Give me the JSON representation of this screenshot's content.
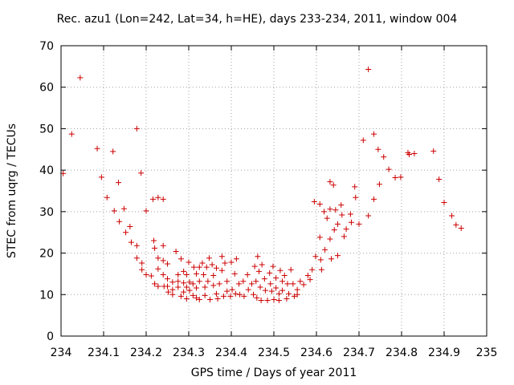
{
  "chart_data": {
    "type": "scatter",
    "title": "Rec. azu1 (Lon=242, Lat=34, h=HE), days 233-234, 2011, window 004",
    "xlabel": "GPS time / Days of year 2011",
    "ylabel": "STEC from uqrg / TECUs",
    "xlim": [
      234,
      235
    ],
    "ylim": [
      0,
      70
    ],
    "xticks": [
      "234",
      "234.1",
      "234.2",
      "234.3",
      "234.4",
      "234.5",
      "234.6",
      "234.7",
      "234.8",
      "234.9",
      "235"
    ],
    "yticks": [
      "0",
      "10",
      "20",
      "30",
      "40",
      "50",
      "60",
      "70"
    ],
    "grid": true,
    "marker": "+",
    "color": "#cc0000",
    "series": [
      {
        "points": [
          [
            234.005,
            39.2
          ],
          [
            234.025,
            48.7
          ],
          [
            234.045,
            62.3
          ],
          [
            234.085,
            45.2
          ],
          [
            234.095,
            38.3
          ],
          [
            234.108,
            33.4
          ],
          [
            234.122,
            44.5
          ],
          [
            234.125,
            30.2
          ],
          [
            234.135,
            37.0
          ],
          [
            234.137,
            27.6
          ],
          [
            234.148,
            30.7
          ],
          [
            234.152,
            25.0
          ],
          [
            234.162,
            26.4
          ],
          [
            234.165,
            22.6
          ],
          [
            234.178,
            50.0
          ],
          [
            234.178,
            21.8
          ],
          [
            234.178,
            18.8
          ],
          [
            234.188,
            39.3
          ],
          [
            234.19,
            17.6
          ],
          [
            234.19,
            16.0
          ],
          [
            234.2,
            30.2
          ],
          [
            234.2,
            14.8
          ],
          [
            234.212,
            14.5
          ],
          [
            234.216,
            33.0
          ],
          [
            234.218,
            23.0
          ],
          [
            234.22,
            21.2
          ],
          [
            234.22,
            12.6
          ],
          [
            234.228,
            33.4
          ],
          [
            234.228,
            18.8
          ],
          [
            234.228,
            16.2
          ],
          [
            234.228,
            12.0
          ],
          [
            234.24,
            33.0
          ],
          [
            234.24,
            21.8
          ],
          [
            234.24,
            18.2
          ],
          [
            234.24,
            14.8
          ],
          [
            234.242,
            12.0
          ],
          [
            234.25,
            17.4
          ],
          [
            234.25,
            13.8
          ],
          [
            234.25,
            12.0
          ],
          [
            234.252,
            10.6
          ],
          [
            234.262,
            13.0
          ],
          [
            234.262,
            11.2
          ],
          [
            234.262,
            10.0
          ],
          [
            234.27,
            20.4
          ],
          [
            234.275,
            14.8
          ],
          [
            234.275,
            13.2
          ],
          [
            234.275,
            11.8
          ],
          [
            234.282,
            18.6
          ],
          [
            234.282,
            9.6
          ],
          [
            234.288,
            15.6
          ],
          [
            234.288,
            12.8
          ],
          [
            234.288,
            10.6
          ],
          [
            234.295,
            14.8
          ],
          [
            234.295,
            11.8
          ],
          [
            234.295,
            9.0
          ],
          [
            234.3,
            17.8
          ],
          [
            234.302,
            13.0
          ],
          [
            234.302,
            11.0
          ],
          [
            234.31,
            12.6
          ],
          [
            234.31,
            9.8
          ],
          [
            234.312,
            16.6
          ],
          [
            234.318,
            15.0
          ],
          [
            234.318,
            11.6
          ],
          [
            234.318,
            9.2
          ],
          [
            234.325,
            16.6
          ],
          [
            234.325,
            13.2
          ],
          [
            234.325,
            8.8
          ],
          [
            234.332,
            17.6
          ],
          [
            234.335,
            14.8
          ],
          [
            234.338,
            11.8
          ],
          [
            234.338,
            9.8
          ],
          [
            234.342,
            16.6
          ],
          [
            234.345,
            13.2
          ],
          [
            234.348,
            18.8
          ],
          [
            234.35,
            8.8
          ],
          [
            234.355,
            17.2
          ],
          [
            234.358,
            14.6
          ],
          [
            234.358,
            12.2
          ],
          [
            234.365,
            16.4
          ],
          [
            234.365,
            10.2
          ],
          [
            234.368,
            9.0
          ],
          [
            234.372,
            12.6
          ],
          [
            234.378,
            19.2
          ],
          [
            234.378,
            15.8
          ],
          [
            234.382,
            9.6
          ],
          [
            234.385,
            17.6
          ],
          [
            234.39,
            13.2
          ],
          [
            234.39,
            10.8
          ],
          [
            234.398,
            9.6
          ],
          [
            234.4,
            17.8
          ],
          [
            234.402,
            11.2
          ],
          [
            234.408,
            15.0
          ],
          [
            234.41,
            10.2
          ],
          [
            234.412,
            18.6
          ],
          [
            234.418,
            12.6
          ],
          [
            234.42,
            10.0
          ],
          [
            234.428,
            13.2
          ],
          [
            234.43,
            9.6
          ],
          [
            234.438,
            14.8
          ],
          [
            234.44,
            11.2
          ],
          [
            234.448,
            12.6
          ],
          [
            234.452,
            10.0
          ],
          [
            234.455,
            16.8
          ],
          [
            234.458,
            13.2
          ],
          [
            234.46,
            9.2
          ],
          [
            234.462,
            19.2
          ],
          [
            234.465,
            15.6
          ],
          [
            234.468,
            11.8
          ],
          [
            234.47,
            8.6
          ],
          [
            234.472,
            17.2
          ],
          [
            234.478,
            13.8
          ],
          [
            234.48,
            11.0
          ],
          [
            234.485,
            8.6
          ],
          [
            234.49,
            15.2
          ],
          [
            234.492,
            12.6
          ],
          [
            234.495,
            10.8
          ],
          [
            234.498,
            16.8
          ],
          [
            234.5,
            8.8
          ],
          [
            234.505,
            14.0
          ],
          [
            234.505,
            11.6
          ],
          [
            234.512,
            10.2
          ],
          [
            234.512,
            8.6
          ],
          [
            234.515,
            15.8
          ],
          [
            234.52,
            13.2
          ],
          [
            234.52,
            11.0
          ],
          [
            234.525,
            14.6
          ],
          [
            234.53,
            9.0
          ],
          [
            234.532,
            12.6
          ],
          [
            234.535,
            10.2
          ],
          [
            234.54,
            16.0
          ],
          [
            234.545,
            12.6
          ],
          [
            234.548,
            9.6
          ],
          [
            234.555,
            11.2
          ],
          [
            234.555,
            10.0
          ],
          [
            234.562,
            13.2
          ],
          [
            234.57,
            12.4
          ],
          [
            234.58,
            14.6
          ],
          [
            234.585,
            13.6
          ],
          [
            234.59,
            16.0
          ],
          [
            234.595,
            32.4
          ],
          [
            234.598,
            19.2
          ],
          [
            234.608,
            31.8
          ],
          [
            234.608,
            23.8
          ],
          [
            234.61,
            18.4
          ],
          [
            234.612,
            16.0
          ],
          [
            234.618,
            30.0
          ],
          [
            234.62,
            20.8
          ],
          [
            234.625,
            28.4
          ],
          [
            234.632,
            37.2
          ],
          [
            234.632,
            30.6
          ],
          [
            234.632,
            23.4
          ],
          [
            234.635,
            18.6
          ],
          [
            234.64,
            36.4
          ],
          [
            234.642,
            25.6
          ],
          [
            234.645,
            30.4
          ],
          [
            234.65,
            27.0
          ],
          [
            234.65,
            19.4
          ],
          [
            234.658,
            31.6
          ],
          [
            234.66,
            29.2
          ],
          [
            234.665,
            24.0
          ],
          [
            234.67,
            25.8
          ],
          [
            234.68,
            29.4
          ],
          [
            234.682,
            27.4
          ],
          [
            234.69,
            36.0
          ],
          [
            234.692,
            33.4
          ],
          [
            234.7,
            27.0
          ],
          [
            234.71,
            47.2
          ],
          [
            234.722,
            64.3
          ],
          [
            234.722,
            29.0
          ],
          [
            234.735,
            48.7
          ],
          [
            234.735,
            33.0
          ],
          [
            234.745,
            45.0
          ],
          [
            234.748,
            36.6
          ],
          [
            234.758,
            43.2
          ],
          [
            234.77,
            40.2
          ],
          [
            234.785,
            38.2
          ],
          [
            234.798,
            38.3
          ],
          [
            234.815,
            44.2
          ],
          [
            234.818,
            43.8
          ],
          [
            234.83,
            44.0
          ],
          [
            234.875,
            44.6
          ],
          [
            234.888,
            37.8
          ],
          [
            234.9,
            32.2
          ],
          [
            234.918,
            29.0
          ],
          [
            234.928,
            26.8
          ],
          [
            234.94,
            26.0
          ]
        ]
      }
    ]
  }
}
